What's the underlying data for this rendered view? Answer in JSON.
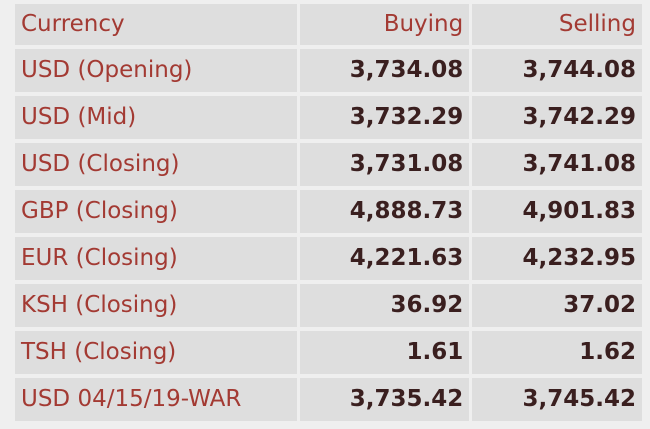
{
  "table": {
    "headers": {
      "currency": "Currency",
      "buying": "Buying",
      "selling": "Selling"
    },
    "rows": [
      {
        "currency": "USD (Opening)",
        "buying": "3,734.08",
        "selling": "3,744.08"
      },
      {
        "currency": "USD (Mid)",
        "buying": "3,732.29",
        "selling": "3,742.29"
      },
      {
        "currency": "USD (Closing)",
        "buying": "3,731.08",
        "selling": "3,741.08"
      },
      {
        "currency": "GBP (Closing)",
        "buying": "4,888.73",
        "selling": "4,901.83"
      },
      {
        "currency": "EUR (Closing)",
        "buying": "4,221.63",
        "selling": "4,232.95"
      },
      {
        "currency": "KSH (Closing)",
        "buying": "36.92",
        "selling": "37.02"
      },
      {
        "currency": "TSH (Closing)",
        "buying": "1.61",
        "selling": "1.62"
      },
      {
        "currency": "USD 04/15/19-WAR",
        "buying": "3,735.42",
        "selling": "3,745.42"
      }
    ]
  },
  "colors": {
    "header_text": "#a33a33",
    "currency_text": "#a33a33",
    "value_text": "#3a1f1f",
    "cell_background": "#dedede",
    "page_background": "#efefef"
  }
}
